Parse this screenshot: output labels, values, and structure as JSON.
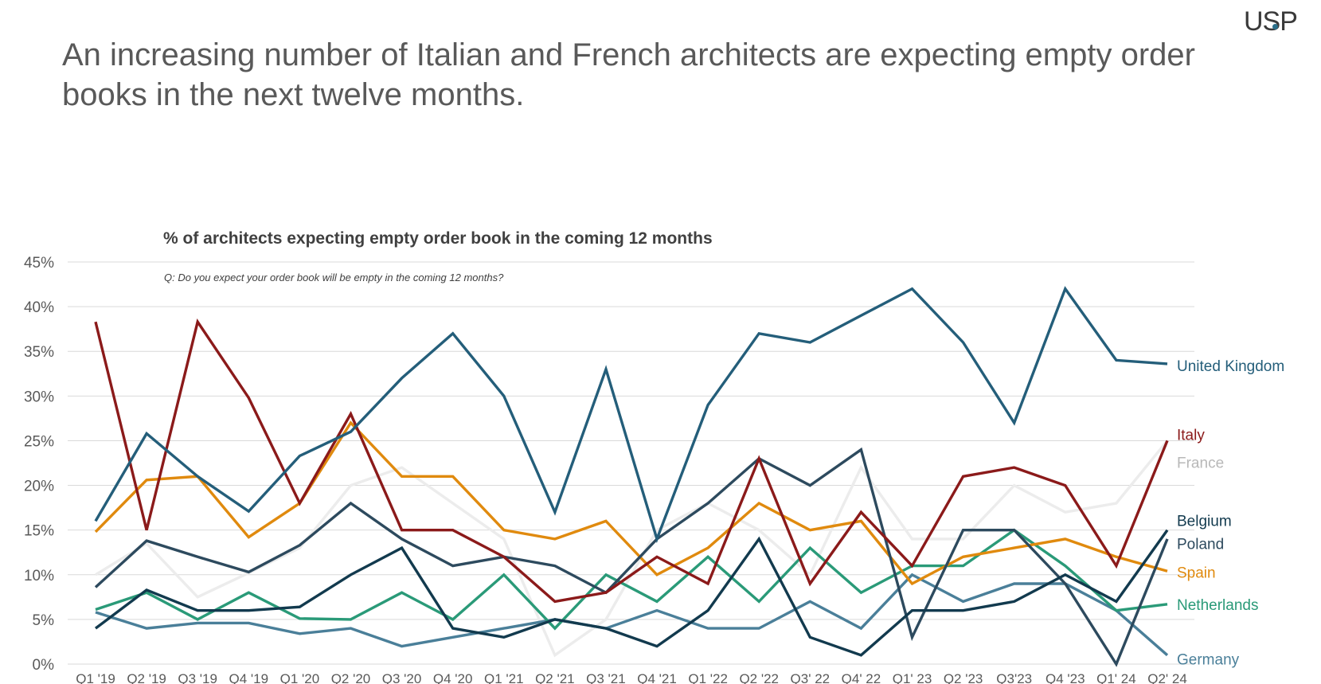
{
  "logo": "USP",
  "headline": "An increasing number of Italian and French architects are expecting empty order books in the next twelve months.",
  "chart_data": {
    "type": "line",
    "title": "% of architects expecting empty order book in the coming 12 months",
    "subtitle": "Q: Do you expect your order book will be empty in the coming 12 months?",
    "xlabel": "",
    "ylabel": "",
    "ylim": [
      0,
      45
    ],
    "yticks": [
      "0%",
      "5%",
      "10%",
      "15%",
      "20%",
      "25%",
      "30%",
      "35%",
      "40%",
      "45%"
    ],
    "grid": true,
    "legend": "right, labels at line ends",
    "categories": [
      "Q1 '19",
      "Q2 '19",
      "Q3 '19",
      "Q4 '19",
      "Q1 '20",
      "Q2 '20",
      "Q3 '20",
      "Q4 '20",
      "Q1 '21",
      "Q2 '21",
      "Q3 '21",
      "Q4 '21",
      "Q1 '22",
      "Q2 '22",
      "Q3' 22",
      "Q4' 22",
      "Q1' 23",
      "Q2 '23",
      "Q3'23",
      "Q4 '23",
      "Q1' 24",
      "Q2' 24"
    ],
    "series": [
      {
        "name": "United Kingdom",
        "color": "#245e7a",
        "values": [
          16,
          25.8,
          21,
          17.1,
          23.3,
          26,
          32,
          37,
          30,
          17,
          33,
          14,
          29,
          37,
          36,
          39,
          42,
          36,
          27,
          42,
          34,
          33.6
        ]
      },
      {
        "name": "Italy",
        "color": "#8b1a1a",
        "values": [
          38.3,
          15,
          38.3,
          29.8,
          18,
          28,
          15,
          15,
          12,
          7,
          8,
          12,
          9,
          23,
          9,
          17,
          11,
          21,
          22,
          20,
          11,
          25
        ]
      },
      {
        "name": "France",
        "color": "#ececec",
        "values": [
          10,
          13.5,
          7.5,
          10.2,
          13,
          20,
          22,
          18,
          14,
          1,
          5,
          15,
          18,
          15,
          10,
          22,
          14,
          14,
          20,
          17,
          18,
          25
        ]
      },
      {
        "name": "Belgium",
        "color": "#123a4e",
        "values": [
          4,
          8.3,
          6,
          6,
          6.4,
          10,
          13,
          4,
          3,
          5,
          4,
          2,
          6,
          14,
          3,
          1,
          6,
          6,
          7,
          10,
          7,
          15
        ]
      },
      {
        "name": "Poland",
        "color": "#2d4a5e",
        "values": [
          8.6,
          13.8,
          12,
          10.3,
          13.3,
          18,
          14,
          11,
          12,
          11,
          8,
          14,
          18,
          23,
          20,
          24,
          3,
          15,
          15,
          9,
          0,
          14
        ]
      },
      {
        "name": "Spain",
        "color": "#e08a0e",
        "values": [
          14.8,
          20.6,
          21,
          14.2,
          18,
          27,
          21,
          21,
          15,
          14,
          16,
          10,
          13,
          18,
          15,
          16,
          9,
          12,
          13,
          14,
          12,
          10.4
        ]
      },
      {
        "name": "Netherlands",
        "color": "#2a9a78",
        "values": [
          6.1,
          8,
          5,
          8,
          5.1,
          5,
          8,
          5,
          10,
          4,
          10,
          7,
          12,
          7,
          13,
          8,
          11,
          11,
          15,
          11,
          6,
          6.7
        ]
      },
      {
        "name": "Germany",
        "color": "#4a7f99",
        "values": [
          5.8,
          4,
          4.6,
          4.6,
          3.4,
          4,
          2,
          3,
          4,
          5,
          4,
          6,
          4,
          4,
          7,
          4,
          10,
          7,
          9,
          9,
          6,
          1
        ]
      }
    ]
  }
}
